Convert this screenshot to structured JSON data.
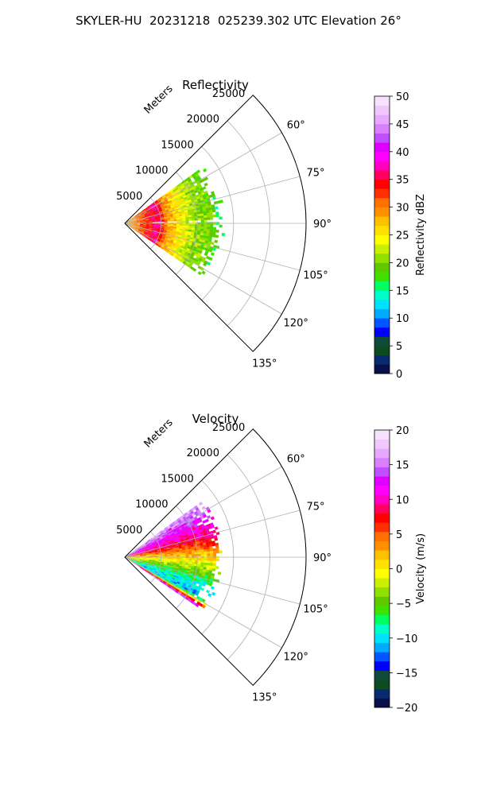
{
  "figure": {
    "title": "SKYLER-HU  20231218  025239.302 UTC Elevation 26°"
  },
  "chart_data": [
    {
      "type": "heatmap",
      "subtype": "polar-sector-ppi",
      "title": "Reflectivity",
      "r_label": "Meters",
      "r_ticks": [
        5000,
        10000,
        15000,
        20000,
        25000
      ],
      "r_tick_labels": [
        "5000",
        "10000",
        "15000",
        "20000",
        "25000"
      ],
      "r_max": 25000,
      "theta_range_deg": [
        45,
        135
      ],
      "theta_ticks": [
        60,
        75,
        90,
        105,
        120,
        135
      ],
      "theta_tick_labels": [
        "60°",
        "75°",
        "90°",
        "105°",
        "120°",
        "135°"
      ],
      "grid": true,
      "data_extent": {
        "theta_deg": [
          54,
          124
        ],
        "r_max_m": 13500
      },
      "colorbar": {
        "label": "Reflectivity dBZ",
        "min": 0,
        "max": 50,
        "ticks": [
          0,
          5,
          10,
          15,
          20,
          25,
          30,
          35,
          40,
          45,
          50
        ],
        "tick_labels": [
          "0",
          "5",
          "10",
          "15",
          "20",
          "25",
          "30",
          "35",
          "40",
          "45",
          "50"
        ],
        "colors": [
          "#08104a",
          "#0a2a70",
          "#0c4a20",
          "#124a3a",
          "#0000ff",
          "#0055ff",
          "#00aaff",
          "#00e0ff",
          "#00ffc8",
          "#00ff60",
          "#40e000",
          "#60c800",
          "#90e000",
          "#c8f000",
          "#ffff00",
          "#ffe000",
          "#ffc000",
          "#ff9000",
          "#ff7000",
          "#ff3000",
          "#ff0000",
          "#ff0060",
          "#ff00c0",
          "#ff00ff",
          "#e000ff",
          "#c050ff",
          "#d880ff",
          "#e8a8ff",
          "#f0c8ff",
          "#f8e0ff"
        ]
      },
      "range_profile": [
        {
          "r": 0,
          "value": 28
        },
        {
          "r": 1500,
          "value": 30
        },
        {
          "r": 3000,
          "value": 33
        },
        {
          "r": 4500,
          "value": 37
        },
        {
          "r": 5500,
          "value": 30
        },
        {
          "r": 7500,
          "value": 25
        },
        {
          "r": 9500,
          "value": 21
        },
        {
          "r": 12000,
          "value": 19
        },
        {
          "r": 13500,
          "value": 15
        }
      ]
    },
    {
      "type": "heatmap",
      "subtype": "polar-sector-ppi",
      "title": "Velocity",
      "r_label": "Meters",
      "r_ticks": [
        5000,
        10000,
        15000,
        20000,
        25000
      ],
      "r_tick_labels": [
        "5000",
        "10000",
        "15000",
        "20000",
        "25000"
      ],
      "r_max": 25000,
      "theta_range_deg": [
        45,
        135
      ],
      "theta_ticks": [
        60,
        75,
        90,
        105,
        120,
        135
      ],
      "theta_tick_labels": [
        "60°",
        "75°",
        "90°",
        "105°",
        "120°",
        "135°"
      ],
      "grid": true,
      "data_extent": {
        "theta_deg": [
          54,
          124
        ],
        "r_max_m": 13500
      },
      "colorbar": {
        "label": "Velocity (m/s)",
        "min": -20,
        "max": 20,
        "ticks": [
          -20,
          -15,
          -10,
          -5,
          0,
          5,
          10,
          15,
          20
        ],
        "tick_labels": [
          "−20",
          "−15",
          "−10",
          "−5",
          "0",
          "5",
          "10",
          "15",
          "20"
        ],
        "colors": [
          "#08104a",
          "#0a2a70",
          "#0c4a20",
          "#124a3a",
          "#0000ff",
          "#0055ff",
          "#00aaff",
          "#00e0ff",
          "#00ffc8",
          "#00ff60",
          "#40e000",
          "#60c800",
          "#90e000",
          "#c8f000",
          "#ffff00",
          "#ffe000",
          "#ffc000",
          "#ff9000",
          "#ff7000",
          "#ff3000",
          "#ff0000",
          "#ff0060",
          "#ff00c0",
          "#ff00ff",
          "#e000ff",
          "#c050ff",
          "#d880ff",
          "#e8a8ff",
          "#f0c8ff",
          "#f8e0ff"
        ]
      },
      "azimuth_profile": [
        {
          "theta": 54,
          "value": 17
        },
        {
          "theta": 65,
          "value": 12
        },
        {
          "theta": 75,
          "value": 9
        },
        {
          "theta": 84,
          "value": 4
        },
        {
          "theta": 92,
          "value": 0
        },
        {
          "theta": 100,
          "value": -4
        },
        {
          "theta": 110,
          "value": -9
        },
        {
          "theta": 118,
          "value": -11
        },
        {
          "theta": 124,
          "value": 15
        }
      ]
    }
  ]
}
